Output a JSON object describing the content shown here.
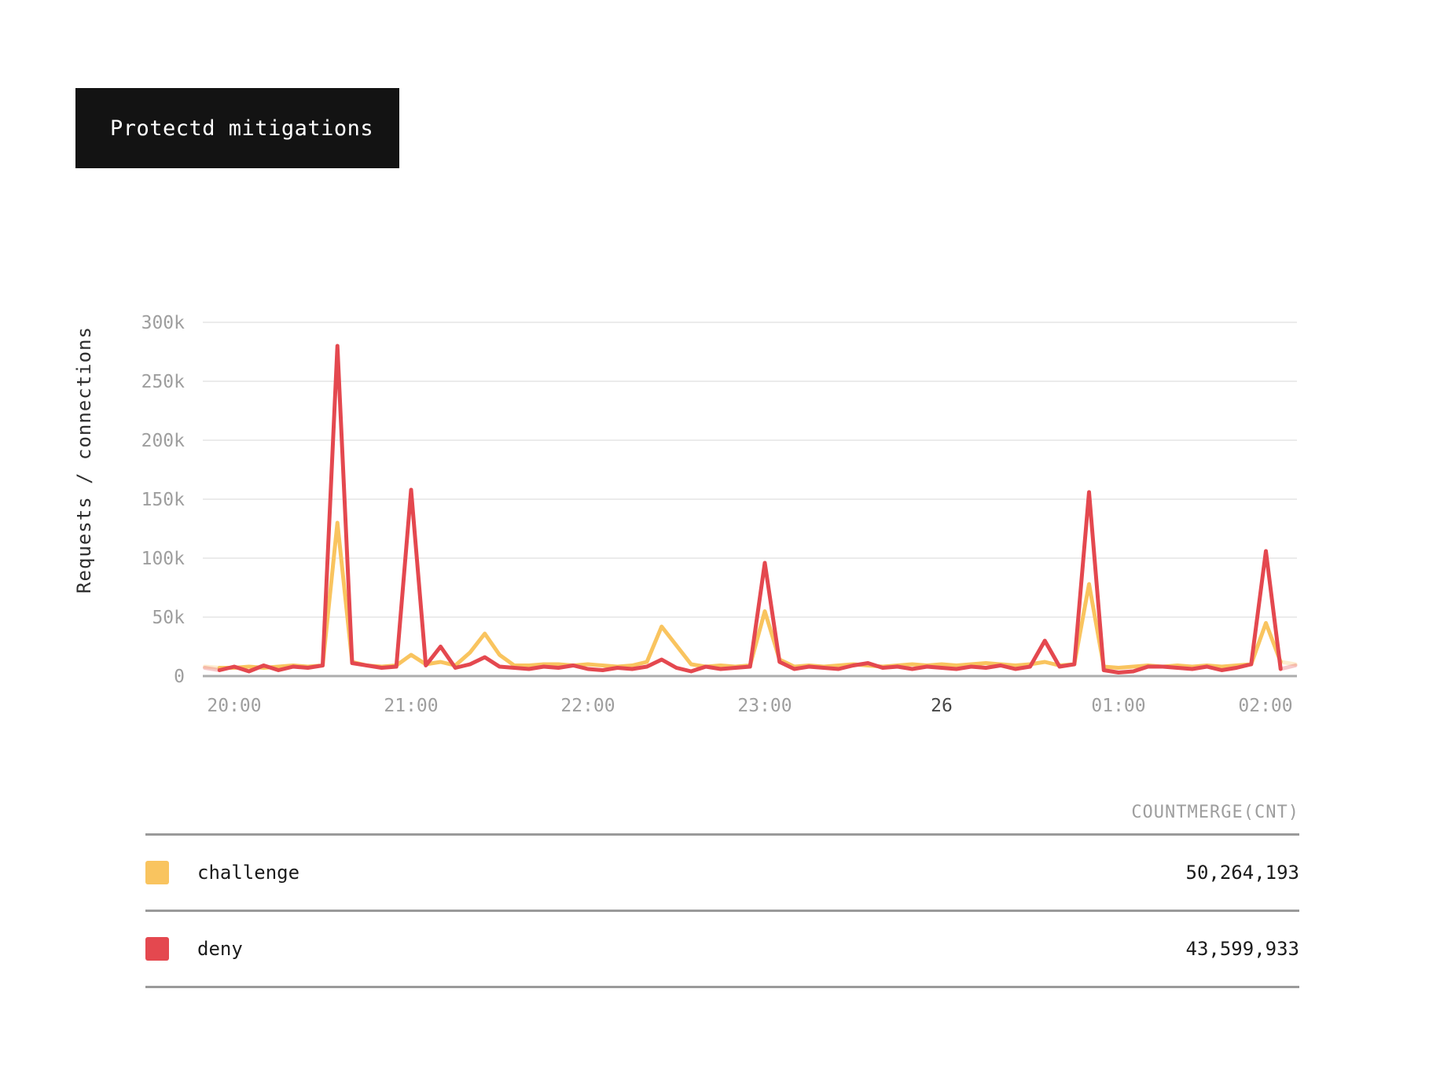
{
  "title": "Protectd mitigations",
  "chart_data": {
    "type": "line",
    "title": "Protectd mitigations",
    "xlabel": "",
    "ylabel": "Requests / connections",
    "ylim": [
      0,
      300000
    ],
    "grid": true,
    "legend_position": "bottom-table",
    "y_ticks": [
      {
        "label": "300k",
        "value_k": 300
      },
      {
        "label": "250k",
        "value_k": 250
      },
      {
        "label": "200k",
        "value_k": 200
      },
      {
        "label": "150k",
        "value_k": 150
      },
      {
        "label": "100k",
        "value_k": 100
      },
      {
        "label": "50k",
        "value_k": 50
      },
      {
        "label": "0",
        "value_k": 0
      }
    ],
    "x_ticks": [
      {
        "label": "20:00",
        "minutes": 0,
        "emphasis": false
      },
      {
        "label": "21:00",
        "minutes": 60,
        "emphasis": false
      },
      {
        "label": "22:00",
        "minutes": 120,
        "emphasis": false
      },
      {
        "label": "23:00",
        "minutes": 180,
        "emphasis": false
      },
      {
        "label": "26",
        "minutes": 240,
        "emphasis": true
      },
      {
        "label": "01:00",
        "minutes": 300,
        "emphasis": false
      },
      {
        "label": "02:00",
        "minutes": 360,
        "emphasis": false
      }
    ],
    "t_start": -10,
    "t_step": 5,
    "fade_from_index": 73,
    "unit_note": "values_k are thousands of requests/connections, sampled every 5 minutes from 19:50 to 02:00",
    "series": [
      {
        "name": "challenge",
        "color": "#F9C45F",
        "values_k": [
          8,
          7,
          7,
          8,
          7,
          8,
          9,
          8,
          9,
          130,
          12,
          9,
          8,
          9,
          18,
          10,
          12,
          9,
          20,
          36,
          18,
          9,
          9,
          10,
          10,
          9,
          10,
          9,
          8,
          9,
          12,
          42,
          26,
          10,
          8,
          9,
          8,
          9,
          55,
          14,
          8,
          9,
          8,
          9,
          10,
          9,
          8,
          9,
          10,
          9,
          10,
          9,
          10,
          11,
          10,
          9,
          10,
          12,
          9,
          10,
          78,
          8,
          7,
          8,
          9,
          8,
          9,
          8,
          9,
          8,
          9,
          10,
          45,
          12,
          10
        ]
      },
      {
        "name": "deny",
        "color": "#E4484F",
        "values_k": [
          7,
          5,
          8,
          4,
          9,
          5,
          8,
          7,
          9,
          280,
          11,
          9,
          7,
          8,
          158,
          9,
          25,
          7,
          10,
          16,
          8,
          7,
          6,
          8,
          7,
          9,
          6,
          5,
          7,
          6,
          8,
          14,
          7,
          4,
          8,
          6,
          7,
          8,
          96,
          12,
          6,
          8,
          7,
          6,
          9,
          11,
          7,
          8,
          6,
          8,
          7,
          6,
          8,
          7,
          9,
          6,
          8,
          30,
          8,
          10,
          156,
          5,
          3,
          4,
          8,
          8,
          7,
          6,
          8,
          5,
          7,
          10,
          106,
          6,
          9
        ]
      }
    ]
  },
  "legend_table": {
    "header": "COUNTMERGE(CNT)",
    "rows": [
      {
        "label": "challenge",
        "color": "#F9C45F",
        "value": "50,264,193"
      },
      {
        "label": "deny",
        "color": "#E4484F",
        "value": "43,599,933"
      }
    ]
  }
}
